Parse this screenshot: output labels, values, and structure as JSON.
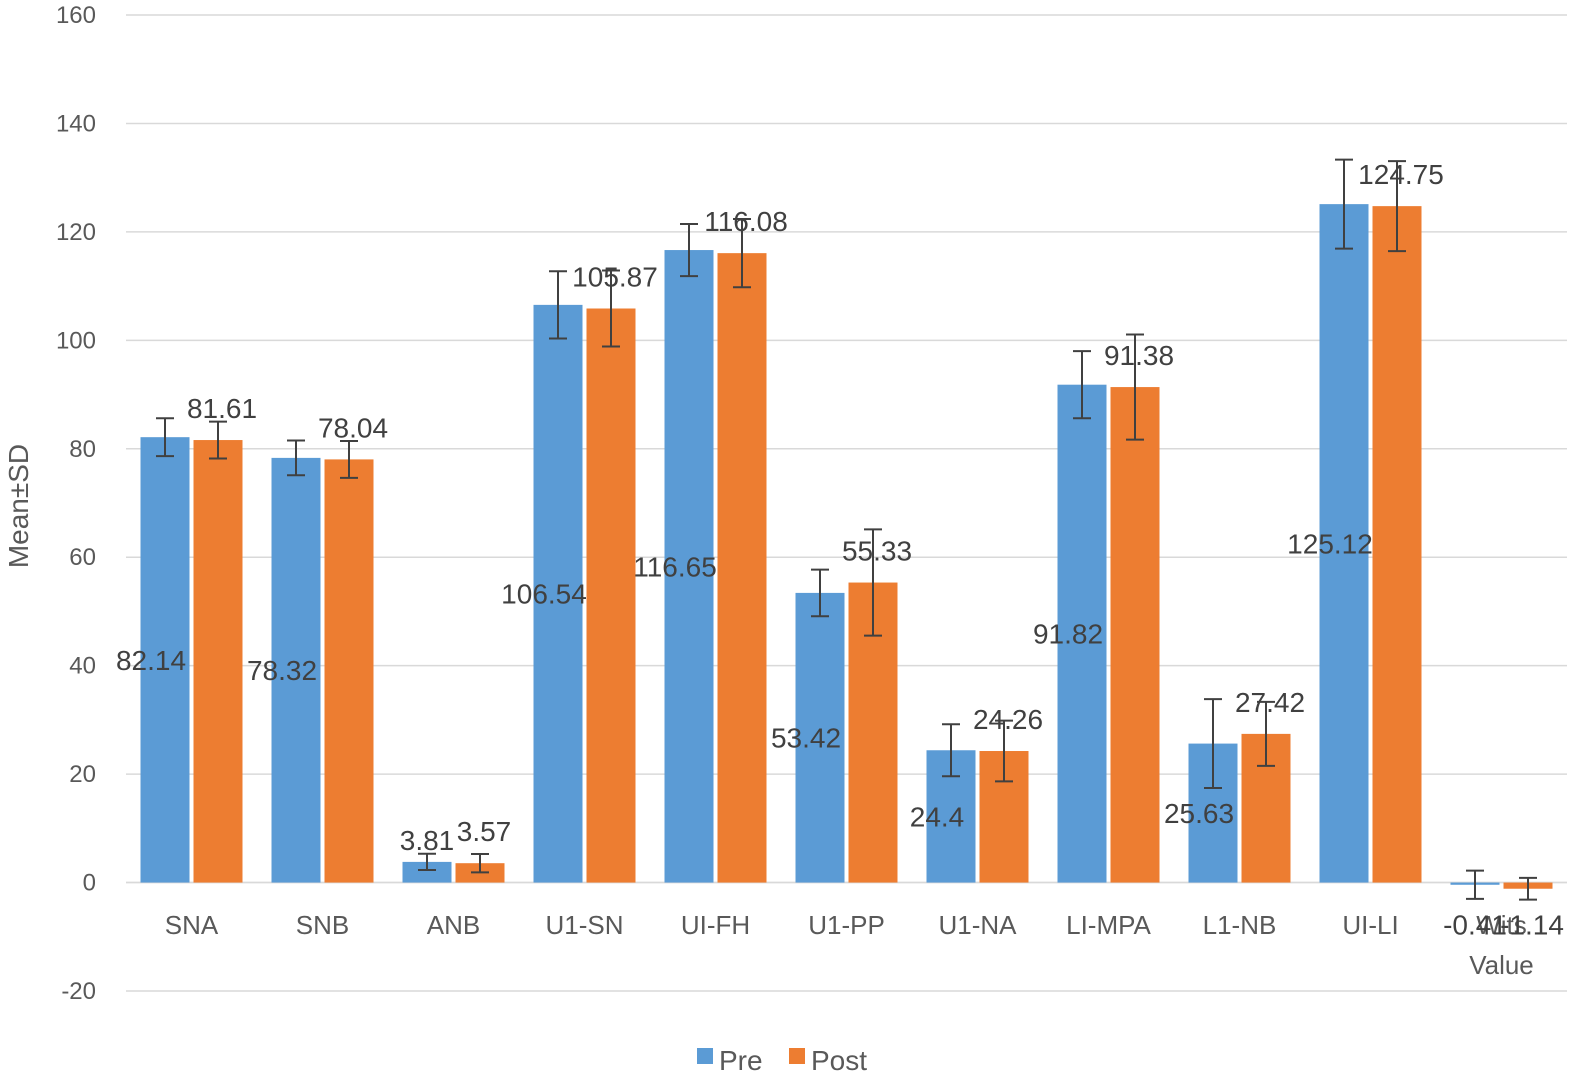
{
  "chart_data": {
    "type": "bar",
    "title": "",
    "xlabel": "",
    "ylabel": "Mean±SD",
    "ylim": [
      -20,
      160
    ],
    "yticks": [
      -20,
      0,
      20,
      40,
      60,
      80,
      100,
      120,
      140,
      160
    ],
    "grid": true,
    "legend_position": "bottom",
    "categories": [
      "SNA",
      "SNB",
      "ANB",
      "U1-SN",
      "UI-FH",
      "U1-PP",
      "U1-NA",
      "LI-MPA",
      "L1-NB",
      "UI-LI",
      "Wits Value"
    ],
    "category_lines": [
      [
        "SNA"
      ],
      [
        "SNB"
      ],
      [
        "ANB"
      ],
      [
        "U1-SN"
      ],
      [
        "UI-FH"
      ],
      [
        "U1-PP"
      ],
      [
        "U1-NA"
      ],
      [
        "LI-MPA"
      ],
      [
        "L1-NB"
      ],
      [
        "UI-LI"
      ],
      [
        "Wits",
        "Value"
      ]
    ],
    "series": [
      {
        "name": "Pre",
        "color": "#5B9BD5",
        "values": [
          82.14,
          78.32,
          3.81,
          106.54,
          116.65,
          53.42,
          24.4,
          91.82,
          25.63,
          125.12,
          -0.41
        ],
        "sd": [
          3.5,
          3.2,
          1.5,
          6.2,
          4.8,
          4.3,
          4.8,
          6.2,
          8.2,
          8.2,
          2.6
        ],
        "labels": [
          "82.14",
          "78.32",
          "3.81",
          "106.54",
          "116.65",
          "53.42",
          "24.4",
          "91.82",
          "25.63",
          "125.12",
          "-0.41"
        ],
        "label_position": "mid"
      },
      {
        "name": "Post",
        "color": "#ED7D31",
        "values": [
          81.61,
          78.04,
          3.57,
          105.87,
          116.08,
          55.33,
          24.26,
          91.38,
          27.42,
          124.75,
          -1.14
        ],
        "sd": [
          3.4,
          3.4,
          1.7,
          7.0,
          6.3,
          9.8,
          5.6,
          9.7,
          5.9,
          8.3,
          2.0
        ],
        "labels": [
          "81.61",
          "78.04",
          "3.57",
          "105.87",
          "116.08",
          "55.33",
          "24.26",
          "91.38",
          "27.42",
          "124.75",
          "-1.14"
        ],
        "label_position": "top"
      }
    ]
  }
}
